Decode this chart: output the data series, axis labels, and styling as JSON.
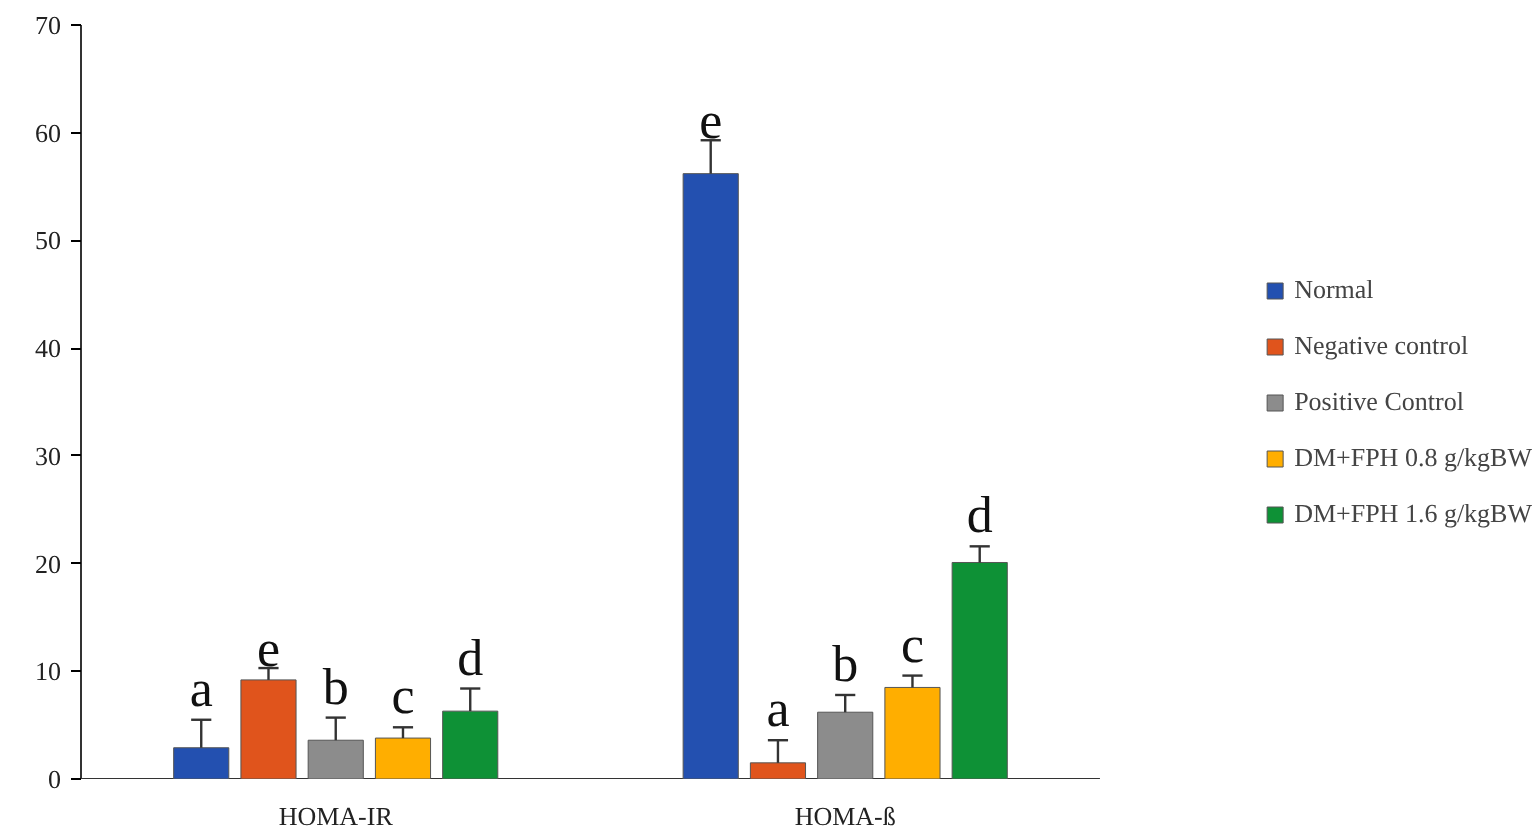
{
  "chart_data": {
    "type": "bar",
    "categories": [
      "HOMA-IR",
      "HOMA-ß"
    ],
    "series": [
      {
        "name": "Normal",
        "color": "#2350b0",
        "values": [
          2.9,
          56.2
        ],
        "errors": [
          [
            2.9,
            5.5
          ],
          [
            56.2,
            59.3
          ]
        ],
        "value_labels": [
          "a",
          "e"
        ]
      },
      {
        "name": "Negative control",
        "color": "#e0541c",
        "values": [
          9.2,
          1.5
        ],
        "errors": [
          [
            9.2,
            10.3
          ],
          [
            1.5,
            3.6
          ]
        ],
        "value_labels": [
          "e",
          "a"
        ]
      },
      {
        "name": "Positive Control",
        "color": "#8c8c8c",
        "values": [
          3.6,
          6.2
        ],
        "errors": [
          [
            3.6,
            5.7
          ],
          [
            6.2,
            7.8
          ]
        ],
        "value_labels": [
          "b",
          "b"
        ]
      },
      {
        "name": "DM+FPH 0.8 g/kgBW",
        "color": "#ffae00",
        "values": [
          3.8,
          8.5
        ],
        "errors": [
          [
            3.8,
            4.8
          ],
          [
            8.5,
            9.6
          ]
        ],
        "value_labels": [
          "c",
          "c"
        ]
      },
      {
        "name": "DM+FPH 1.6 g/kgBW",
        "color": "#0e9136",
        "values": [
          6.3,
          20.1
        ],
        "errors": [
          [
            6.3,
            8.4
          ],
          [
            20.1,
            21.6
          ]
        ],
        "value_labels": [
          "d",
          "d"
        ]
      }
    ],
    "ylim": [
      0,
      70
    ],
    "yticks": [
      0,
      10,
      20,
      30,
      40,
      50,
      60,
      70
    ],
    "grid": false,
    "legend": "right"
  }
}
